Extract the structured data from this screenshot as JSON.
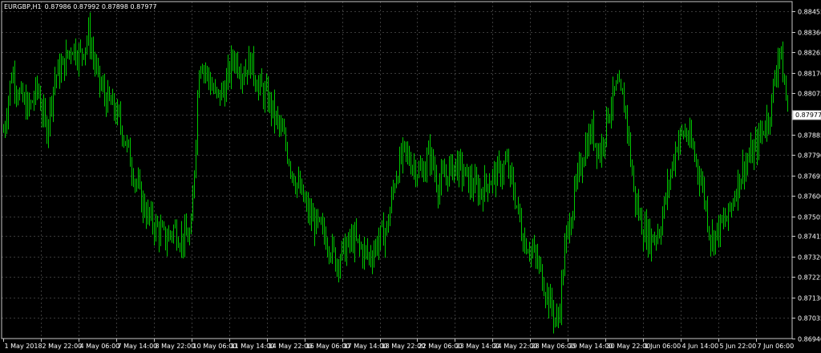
{
  "chart_data": {
    "type": "bar",
    "title": "EURGBP,H1",
    "ohlc_header": "0.87986 0.87992 0.87898 0.87977",
    "symbol": "EURGBP",
    "timeframe": "H1",
    "ylim": [
      0.8694,
      0.885
    ],
    "y_ticks": [
      "0.88455",
      "0.88360",
      "0.88265",
      "0.88170",
      "0.88075",
      "0.87977",
      "0.87885",
      "0.87790",
      "0.87695",
      "0.87600",
      "0.87505",
      "0.87415",
      "0.87320",
      "0.87225",
      "0.87130",
      "0.87035",
      "0.86940"
    ],
    "current_price": "0.87977",
    "x_ticks": [
      "1 May 2018",
      "2 May 22:00",
      "4 May 06:00",
      "7 May 14:00",
      "8 May 22:00",
      "10 May 06:00",
      "11 May 14:00",
      "14 May 22:00",
      "16 May 06:00",
      "17 May 14:00",
      "18 May 22:00",
      "22 May 06:00",
      "23 May 14:00",
      "24 May 22:00",
      "28 May 06:00",
      "29 May 14:00",
      "30 May 22:00",
      "1 Jun 06:00",
      "4 Jun 14:00",
      "5 Jun 22:00",
      "7 Jun 06:00"
    ],
    "series": [
      {
        "close": [
          0.879,
          0.8818,
          0.8805,
          0.88,
          0.881,
          0.879,
          0.8815,
          0.882,
          0.883,
          0.8825,
          0.8835,
          0.8815,
          0.8805,
          0.88,
          0.879,
          0.8775,
          0.876,
          0.875,
          0.8745,
          0.874,
          0.8745,
          0.874,
          0.8742,
          0.8825,
          0.8815,
          0.8805,
          0.881,
          0.8825,
          0.8818,
          0.8822,
          0.881,
          0.8805,
          0.8795,
          0.8785,
          0.877,
          0.876,
          0.875,
          0.8745,
          0.874,
          0.873,
          0.8735,
          0.874,
          0.8735,
          0.8732,
          0.874,
          0.8745,
          0.877,
          0.878,
          0.8775,
          0.877,
          0.878,
          0.8765,
          0.877,
          0.8775,
          0.877,
          0.8765,
          0.8762,
          0.8768,
          0.877,
          0.8775,
          0.876,
          0.874,
          0.8735,
          0.8725,
          0.8712,
          0.87,
          0.874,
          0.876,
          0.878,
          0.879,
          0.878,
          0.88,
          0.881,
          0.88,
          0.876,
          0.8745,
          0.874,
          0.8745,
          0.8765,
          0.8785,
          0.879,
          0.878,
          0.8765,
          0.874,
          0.8745,
          0.875,
          0.8765,
          0.8775,
          0.878,
          0.879,
          0.88,
          0.883,
          0.88
        ]
      }
    ],
    "colors": {
      "background": "#000000",
      "bars": "#00c800",
      "grid": "#3a3a3a",
      "axis": "#c8c8c8",
      "text": "#ffffff"
    },
    "grid": true
  }
}
